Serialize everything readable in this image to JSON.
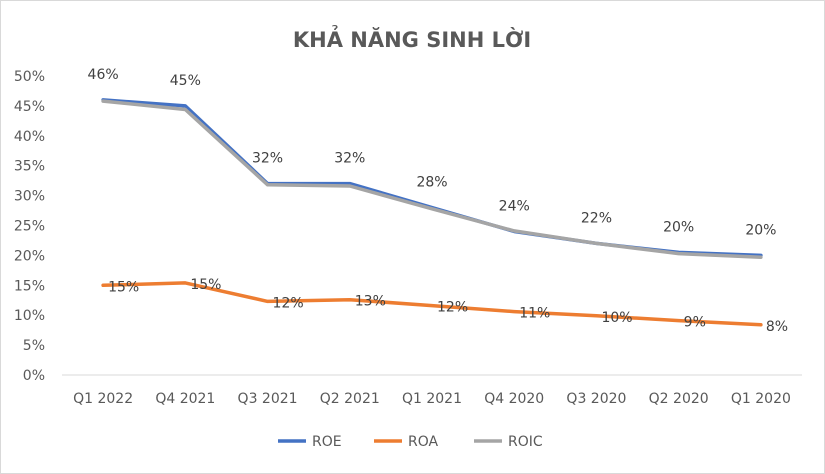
{
  "chart_data": {
    "type": "line",
    "title": "KHẢ NĂNG SINH LỜI",
    "categories": [
      "Q1 2022",
      "Q4 2021",
      "Q3 2021",
      "Q2 2021",
      "Q1 2021",
      "Q4 2020",
      "Q3 2020",
      "Q2 2020",
      "Q1 2020"
    ],
    "series": [
      {
        "name": "ROE",
        "color": "#4472c4",
        "values": [
          46,
          45,
          32,
          32,
          28,
          24,
          22,
          20.5,
          20
        ],
        "labels": [
          "46%",
          "45%",
          "32%",
          "32%",
          "28%",
          "24%",
          "22%",
          "20%",
          "20%"
        ]
      },
      {
        "name": "ROA",
        "color": "#ed7d31",
        "values": [
          15,
          15.4,
          12.3,
          12.6,
          11.6,
          10.6,
          9.9,
          9.1,
          8.4
        ],
        "labels": [
          "15%",
          "15%",
          "12%",
          "13%",
          "12%",
          "11%",
          "10%",
          "9%",
          "8%"
        ]
      },
      {
        "name": "ROIC",
        "color": "#a5a5a5",
        "values": [
          45.8,
          44.4,
          31.8,
          31.6,
          27.8,
          24.1,
          22.0,
          20.3,
          19.7
        ],
        "labels": []
      }
    ],
    "ylim": [
      0,
      50
    ],
    "yticks": [
      "0%",
      "5%",
      "10%",
      "15%",
      "20%",
      "25%",
      "30%",
      "35%",
      "40%",
      "45%",
      "50%"
    ],
    "xlabel": "",
    "ylabel": "",
    "grid": false,
    "legend": "bottom"
  }
}
